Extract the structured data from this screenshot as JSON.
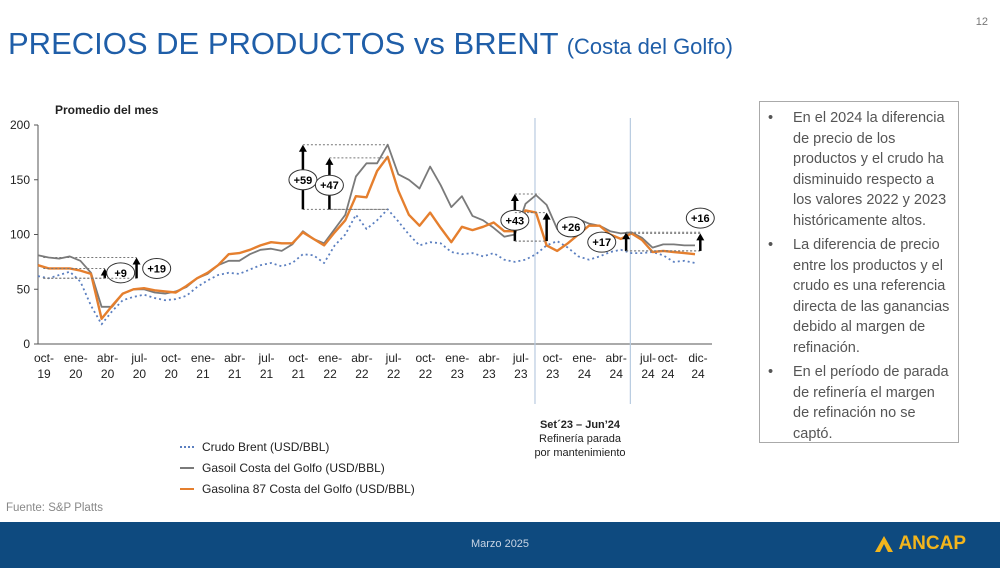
{
  "header": {
    "title": "PRECIOS DE PRODUCTOS vs BRENT",
    "subtitle": "(Costa del Golfo)",
    "page_number": "12"
  },
  "chart_data": {
    "type": "line",
    "title": "Promedio del mes",
    "ylim": [
      0,
      200
    ],
    "yticks": [
      "0",
      "50",
      "100",
      "150",
      "200"
    ],
    "x_tick_labels": [
      [
        "oct-",
        "19"
      ],
      [
        "ene-",
        "20"
      ],
      [
        "abr-",
        "20"
      ],
      [
        "jul-",
        "20"
      ],
      [
        "oct-",
        "20"
      ],
      [
        "ene-",
        "21"
      ],
      [
        "abr-",
        "21"
      ],
      [
        "jul-",
        "21"
      ],
      [
        "oct-",
        "21"
      ],
      [
        "ene-",
        "22"
      ],
      [
        "abr-",
        "22"
      ],
      [
        "jul-",
        "22"
      ],
      [
        "oct-",
        "22"
      ],
      [
        "ene-",
        "23"
      ],
      [
        "abr-",
        "23"
      ],
      [
        "jul-",
        "23"
      ],
      [
        "oct-",
        "23"
      ],
      [
        "ene-",
        "24"
      ],
      [
        "abr-",
        "24"
      ],
      [
        "jul-",
        "24"
      ],
      [
        "oct-",
        "24"
      ],
      [
        "dic-",
        "24"
      ]
    ],
    "x_tick_months": [
      0,
      3,
      6,
      9,
      12,
      15,
      18,
      21,
      24,
      27,
      30,
      33,
      36,
      39,
      42,
      45,
      48,
      51,
      54,
      57,
      60,
      62
    ],
    "series": [
      {
        "name": "Crudo Brent (USD/BBL)",
        "color": "#5b7fc0",
        "style": "dotted",
        "values": [
          62,
          60,
          63,
          66,
          57,
          35,
          18,
          30,
          40,
          43,
          45,
          42,
          40,
          41,
          44,
          52,
          58,
          63,
          65,
          64,
          68,
          72,
          74,
          71,
          74,
          82,
          81,
          74,
          90,
          100,
          118,
          105,
          113,
          123,
          112,
          100,
          90,
          93,
          92,
          84,
          82,
          83,
          80,
          83,
          77,
          75,
          77,
          82,
          90,
          94,
          88,
          80,
          77,
          80,
          84,
          86,
          83,
          83,
          84,
          81,
          75,
          76,
          74
        ]
      },
      {
        "name": "Gasoil Costa del Golfo (USD/BBL)",
        "color": "#7a7a7a",
        "style": "solid",
        "values": [
          81,
          79,
          78,
          80,
          76,
          65,
          34,
          34,
          46,
          50,
          50,
          47,
          46,
          48,
          52,
          60,
          64,
          72,
          76,
          76,
          82,
          86,
          87,
          85,
          91,
          103,
          96,
          92,
          105,
          118,
          153,
          165,
          165,
          182,
          155,
          150,
          142,
          162,
          145,
          125,
          135,
          117,
          113,
          106,
          98,
          100,
          128,
          136,
          127,
          105,
          108,
          114,
          110,
          108,
          103,
          101,
          102,
          97,
          88,
          91,
          91,
          90,
          90
        ]
      },
      {
        "name": "Gasolina 87 Costa del Golfo (USD/BBL)",
        "color": "#e57f2e",
        "style": "solid",
        "values": [
          72,
          69,
          69,
          69,
          67,
          64,
          23,
          35,
          46,
          50,
          51,
          49,
          48,
          47,
          53,
          60,
          65,
          72,
          82,
          83,
          86,
          90,
          93,
          92,
          92,
          102,
          96,
          90,
          102,
          113,
          135,
          134,
          158,
          171,
          140,
          118,
          108,
          120,
          106,
          93,
          107,
          104,
          107,
          111,
          103,
          103,
          122,
          120,
          90,
          85,
          92,
          100,
          108,
          108,
          100,
          96,
          101,
          95,
          84,
          85,
          84,
          83,
          82
        ]
      }
    ],
    "annotations": [
      {
        "label": "+9",
        "month": 6.3,
        "low": 60,
        "high": 69,
        "from": 0.5,
        "to": 6.3,
        "label_dx": 1.5,
        "label_y": 65
      },
      {
        "label": "+19",
        "month": 9.3,
        "low": 60,
        "high": 79,
        "from": 0.5,
        "to": 9.3,
        "label_dx": 1.9,
        "label_y": 69
      },
      {
        "label": "+59",
        "month": 25,
        "low": 123,
        "high": 182,
        "from": 25,
        "to": 33,
        "label_dx": 0,
        "label_y": 150
      },
      {
        "label": "+47",
        "month": 27.5,
        "low": 123,
        "high": 170,
        "from": 27.5,
        "to": 33,
        "label_dx": 0,
        "label_y": 145
      },
      {
        "label": "+43",
        "month": 45,
        "low": 94,
        "high": 137,
        "from": 45,
        "to": 47.3,
        "label_dx": 0,
        "label_y": 113
      },
      {
        "label": "+26",
        "month": 48,
        "low": 94,
        "high": 120,
        "from": 45,
        "to": 48,
        "label_dx": 2.3,
        "label_y": 107
      },
      {
        "label": "+17",
        "month": 55.5,
        "low": 85,
        "high": 102,
        "from": 55.5,
        "to": 62.5,
        "label_dx": -2.3,
        "label_y": 93
      },
      {
        "label": "+16",
        "month": 62.5,
        "low": 85,
        "high": 101,
        "from": 55.5,
        "to": 62.5,
        "label_dx": 0,
        "label_y": 115
      }
    ],
    "vertical_markers": [
      46.9,
      55.9
    ]
  },
  "note": {
    "line1": "Set´23 – Jun’24",
    "line2": "Refinería parada",
    "line3": "por mantenimiento"
  },
  "bullets": [
    "En el 2024 la diferencia de precio de los productos y el crudo ha disminuido respecto a los valores 2022 y 2023 históricamente altos.",
    "La diferencia de precio entre los productos y el crudo es una referencia directa de las ganancias debido al margen de refinación.",
    "En el período de parada de refinería el margen de refinación no se captó."
  ],
  "bullet_symbol": "•",
  "source": "Fuente: S&P Platts",
  "footer": {
    "date": "Marzo 2025",
    "logo": "ANCAP",
    "brand_color": "#f2b51c",
    "band_color": "#0e4a7f"
  }
}
